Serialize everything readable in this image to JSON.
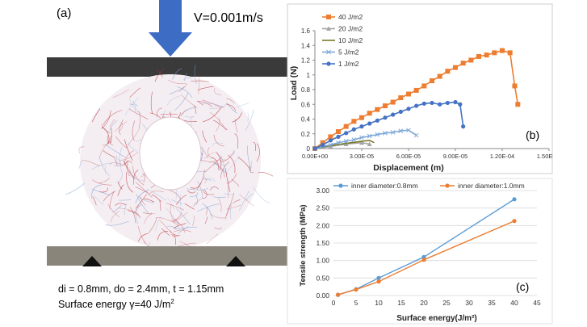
{
  "panel_a": {
    "label": "(a)",
    "velocity": "V=0.001m/s",
    "caption_line1": "di = 0.8mm, do = 2.4mm, t = 1.15mm",
    "caption_line2_prefix": "Surface energy γ=40 J/m",
    "caption_line2_sup": "2",
    "colors": {
      "plate": "#3a3a3a",
      "base": "#8a857a",
      "arrow": "#3d6cc4",
      "fiber_red": "#b8323a",
      "fiber_blue": "#7f9fd6"
    }
  },
  "chart_data": [
    {
      "type": "line",
      "panel_label": "(b)",
      "xlabel": "Displacement (m)",
      "ylabel": "Load (N)",
      "xlim": [
        0,
        0.00015
      ],
      "ylim": [
        0,
        1.6
      ],
      "xticks": [
        0,
        3e-05,
        6e-05,
        9e-05,
        0.00012,
        0.00015
      ],
      "xtick_labels": [
        "0.00E+00",
        "3.00E-05",
        "6.00E-05",
        "9.00E-05",
        "1.20E-04",
        "1.50E-04"
      ],
      "yticks": [
        0,
        0.2,
        0.4,
        0.6,
        0.8,
        1.0,
        1.2,
        1.4,
        1.6
      ],
      "ytick_labels": [
        "0",
        "0.2",
        "0.4",
        "0.6",
        "0.8",
        "1",
        "1.2",
        "1.4",
        "1.6"
      ],
      "legend_position": "top-left",
      "series": [
        {
          "name": "40 J/m2",
          "color": "#ed7d31",
          "marker": "square",
          "x": [
            0,
            5e-06,
            1e-05,
            1.5e-05,
            2e-05,
            2.5e-05,
            3e-05,
            3.5e-05,
            4e-05,
            4.5e-05,
            5e-05,
            5.5e-05,
            6e-05,
            6.5e-05,
            7e-05,
            7.5e-05,
            8e-05,
            8.5e-05,
            9e-05,
            9.5e-05,
            0.0001,
            0.000105,
            0.00011,
            0.000115,
            0.00012,
            0.000125,
            0.000128,
            0.00013
          ],
          "y": [
            0,
            0.08,
            0.16,
            0.23,
            0.3,
            0.37,
            0.42,
            0.48,
            0.53,
            0.58,
            0.63,
            0.69,
            0.74,
            0.79,
            0.85,
            0.92,
            0.98,
            1.05,
            1.1,
            1.16,
            1.2,
            1.25,
            1.27,
            1.3,
            1.33,
            1.3,
            0.85,
            0.6
          ]
        },
        {
          "name": "20 J/m2",
          "color": "#a5a5a5",
          "marker": "triangle",
          "x": [
            0,
            1e-05,
            2e-05,
            3e-05,
            3.5e-05
          ],
          "y": [
            0,
            0.03,
            0.06,
            0.08,
            0.06
          ]
        },
        {
          "name": "10 J/m2",
          "color": "#7a7a2a",
          "marker": "line",
          "x": [
            0,
            1e-05,
            2e-05,
            3e-05,
            3.5e-05,
            3.8e-05
          ],
          "y": [
            0,
            0.04,
            0.07,
            0.1,
            0.11,
            0.08
          ]
        },
        {
          "name": "5 J/m2",
          "color": "#7fa8d8",
          "marker": "x",
          "x": [
            0,
            5e-06,
            1e-05,
            1.5e-05,
            2e-05,
            2.5e-05,
            3e-05,
            3.5e-05,
            4e-05,
            4.5e-05,
            5e-05,
            5.5e-05,
            6e-05,
            6.5e-05
          ],
          "y": [
            0,
            0.03,
            0.05,
            0.08,
            0.1,
            0.12,
            0.15,
            0.17,
            0.19,
            0.21,
            0.22,
            0.24,
            0.25,
            0.18
          ]
        },
        {
          "name": "1 J/m2",
          "color": "#4472c4",
          "marker": "circle",
          "x": [
            0,
            5e-06,
            1e-05,
            1.5e-05,
            2e-05,
            2.5e-05,
            3e-05,
            3.5e-05,
            4e-05,
            4.5e-05,
            5e-05,
            5.5e-05,
            6e-05,
            6.5e-05,
            7e-05,
            7.5e-05,
            8e-05,
            8.5e-05,
            9e-05,
            9.3e-05,
            9.5e-05
          ],
          "y": [
            0,
            0.05,
            0.11,
            0.16,
            0.21,
            0.26,
            0.3,
            0.34,
            0.38,
            0.42,
            0.46,
            0.5,
            0.54,
            0.58,
            0.61,
            0.62,
            0.6,
            0.62,
            0.63,
            0.6,
            0.3
          ]
        }
      ]
    },
    {
      "type": "line",
      "panel_label": "(c)",
      "xlabel": "Surface energy(J/m²)",
      "ylabel": "Tensile strength (MPa)",
      "xlim": [
        0,
        45
      ],
      "ylim": [
        0,
        3.0
      ],
      "xticks": [
        0,
        5,
        10,
        15,
        20,
        25,
        30,
        35,
        40,
        45
      ],
      "yticks": [
        0,
        0.5,
        1.0,
        1.5,
        2.0,
        2.5,
        3.0
      ],
      "ytick_labels": [
        "0.00",
        "0.50",
        "1.00",
        "1.50",
        "2.00",
        "2.50",
        "3.00"
      ],
      "legend_position": "top",
      "series": [
        {
          "name": "inner diameter:0.8mm",
          "color": "#5b9bd5",
          "x": [
            1,
            5,
            10,
            20,
            40
          ],
          "y": [
            0.02,
            0.18,
            0.5,
            1.1,
            2.75
          ]
        },
        {
          "name": "inner diameter:1.0mm",
          "color": "#ed7d31",
          "x": [
            1,
            5,
            10,
            20,
            40
          ],
          "y": [
            0.02,
            0.17,
            0.4,
            1.02,
            2.13
          ]
        }
      ]
    }
  ]
}
